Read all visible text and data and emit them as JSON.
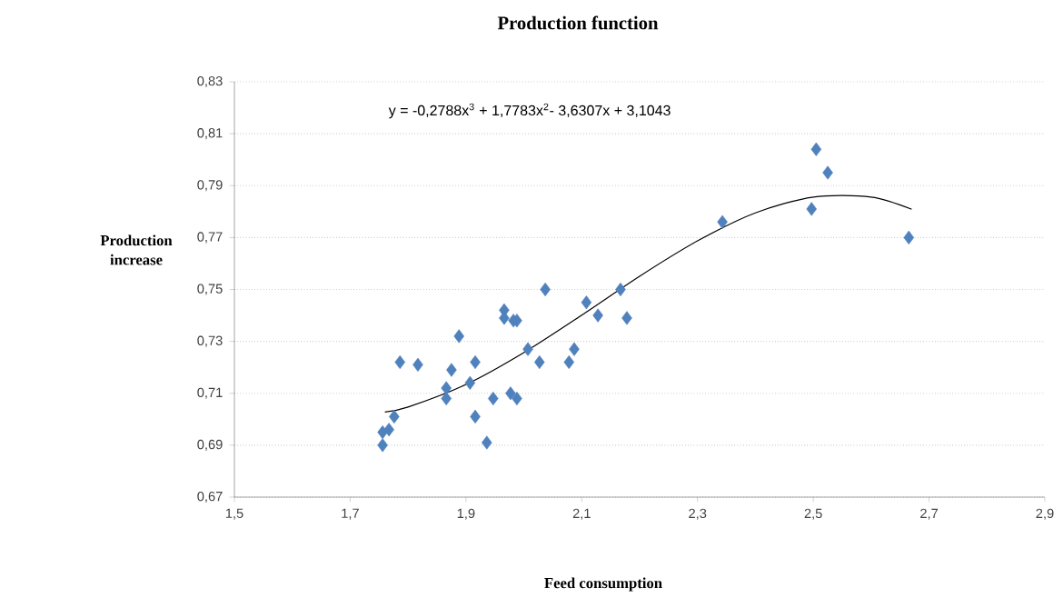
{
  "chart_data": {
    "type": "scatter",
    "title": "Production function",
    "xlabel": "Feed consumption",
    "ylabel": "Production increase",
    "annotations": [
      "y = -0,2788x$^{3}$ + 1,7783x$^{2}$- 3,6307x + 3,1043"
    ],
    "series": [
      {
        "color": "#4f81bd",
        "marker": "diamond",
        "x": [
          1.756,
          1.756,
          1.767,
          1.776,
          1.786,
          1.817,
          1.866,
          1.866,
          1.875,
          1.888,
          1.907,
          1.916,
          1.916,
          1.936,
          1.947,
          1.966,
          1.966,
          1.982,
          1.988,
          1.977,
          1.988,
          2.007,
          2.027,
          2.037,
          2.078,
          2.087,
          2.108,
          2.128,
          2.167,
          2.178,
          2.343,
          2.497,
          2.505,
          2.525,
          2.665
        ],
        "values": [
          0.69,
          0.695,
          0.696,
          0.701,
          0.722,
          0.721,
          0.708,
          0.712,
          0.719,
          0.732,
          0.714,
          0.722,
          0.701,
          0.691,
          0.708,
          0.742,
          0.739,
          0.738,
          0.738,
          0.71,
          0.708,
          0.727,
          0.722,
          0.75,
          0.722,
          0.727,
          0.745,
          0.74,
          0.75,
          0.739,
          0.776,
          0.781,
          0.804,
          0.795,
          0.77
        ]
      },
      {
        "type": "line",
        "color": "#000000",
        "marker": "none",
        "line_style": "solid",
        "x": [
          1.76,
          1.8,
          1.9,
          2.0,
          2.1,
          2.2,
          2.3,
          2.4,
          2.5,
          2.6,
          2.67
        ],
        "values": [
          0.7028,
          0.7047,
          0.7134,
          0.7257,
          0.7401,
          0.7551,
          0.7687,
          0.7795,
          0.7856,
          0.7856,
          0.7809
        ]
      }
    ],
    "xlim": [
      1.5,
      2.9
    ],
    "ylim": [
      0.67,
      0.83
    ],
    "xticks": [
      {
        "value": 1.5,
        "label": "1,5"
      },
      {
        "value": 1.7,
        "label": "1,7"
      },
      {
        "value": 1.9,
        "label": "1,9"
      },
      {
        "value": 2.1,
        "label": "2,1"
      },
      {
        "value": 2.3,
        "label": "2,3"
      },
      {
        "value": 2.5,
        "label": "2,5"
      },
      {
        "value": 2.7,
        "label": "2,7"
      },
      {
        "value": 2.9,
        "label": "2,9"
      }
    ],
    "yticks": [
      {
        "value": 0.67,
        "label": "0,67"
      },
      {
        "value": 0.69,
        "label": "0,69"
      },
      {
        "value": 0.71,
        "label": "0,71"
      },
      {
        "value": 0.73,
        "label": "0,73"
      },
      {
        "value": 0.75,
        "label": "0,75"
      },
      {
        "value": 0.77,
        "label": "0,77"
      },
      {
        "value": 0.79,
        "label": "0,79"
      },
      {
        "value": 0.81,
        "label": "0,81"
      },
      {
        "value": 0.83,
        "label": "0,83"
      }
    ],
    "grid": "y"
  }
}
